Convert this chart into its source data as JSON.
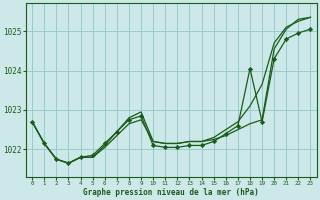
{
  "title": "Graphe pression niveau de la mer (hPa)",
  "background_color": "#cce8e8",
  "line_color": "#1a5c1a",
  "grid_color": "#99cccc",
  "xlim": [
    -0.5,
    23.5
  ],
  "ylim": [
    1021.3,
    1025.7
  ],
  "yticks": [
    1022,
    1023,
    1024,
    1025
  ],
  "xticks": [
    0,
    1,
    2,
    3,
    4,
    5,
    6,
    7,
    8,
    9,
    10,
    11,
    12,
    13,
    14,
    15,
    16,
    17,
    18,
    19,
    20,
    21,
    22,
    23
  ],
  "series": [
    {
      "y": [
        1022.7,
        1022.15,
        1021.75,
        1021.65,
        1021.8,
        1021.8,
        1022.05,
        1022.35,
        1022.65,
        1022.75,
        1022.2,
        1022.15,
        1022.15,
        1022.2,
        1022.2,
        1022.25,
        1022.35,
        1022.5,
        1022.65,
        1022.75,
        1024.55,
        1025.05,
        1025.3,
        1025.35
      ],
      "marker": false
    },
    {
      "y": [
        1022.7,
        1022.15,
        1021.75,
        1021.65,
        1021.8,
        1021.8,
        1022.1,
        1022.45,
        1022.8,
        1022.95,
        1022.2,
        1022.15,
        1022.15,
        1022.2,
        1022.2,
        1022.3,
        1022.5,
        1022.7,
        1023.1,
        1023.65,
        1024.7,
        1025.1,
        1025.25,
        1025.35
      ],
      "marker": false
    },
    {
      "y": [
        1022.7,
        1022.15,
        1021.75,
        1021.65,
        1021.8,
        1021.85,
        1022.15,
        1022.45,
        1022.75,
        1022.85,
        1022.1,
        1022.05,
        1022.05,
        1022.1,
        1022.1,
        1022.2,
        1022.4,
        1022.6,
        1024.05,
        1022.7,
        1024.3,
        1024.8,
        1024.95,
        1025.05
      ],
      "marker": true
    }
  ]
}
